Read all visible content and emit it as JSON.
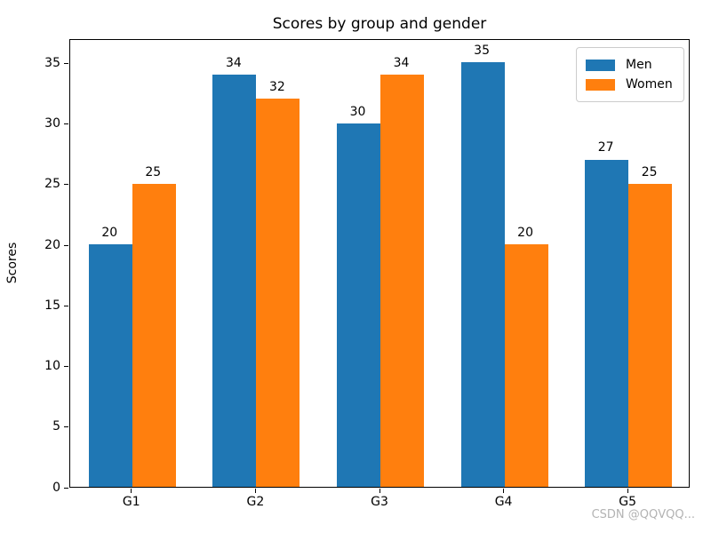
{
  "figure": {
    "background": "#ffffff",
    "watermark": "CSDN @QQVQQ..."
  },
  "chart_data": {
    "type": "bar",
    "title": "Scores by group and gender",
    "xlabel": "",
    "ylabel": "Scores",
    "categories": [
      "G1",
      "G2",
      "G3",
      "G4",
      "G5"
    ],
    "series": [
      {
        "name": "Men",
        "color": "#1f77b4",
        "values": [
          20,
          34,
          30,
          35,
          27
        ]
      },
      {
        "name": "Women",
        "color": "#ff7f0e",
        "values": [
          25,
          32,
          34,
          20,
          25
        ]
      }
    ],
    "bar_value_labels": true,
    "yticks": [
      0,
      5,
      10,
      15,
      20,
      25,
      30,
      35
    ],
    "ylim": [
      0,
      37.0
    ],
    "grid": false,
    "legend": {
      "position": "upper right"
    }
  }
}
